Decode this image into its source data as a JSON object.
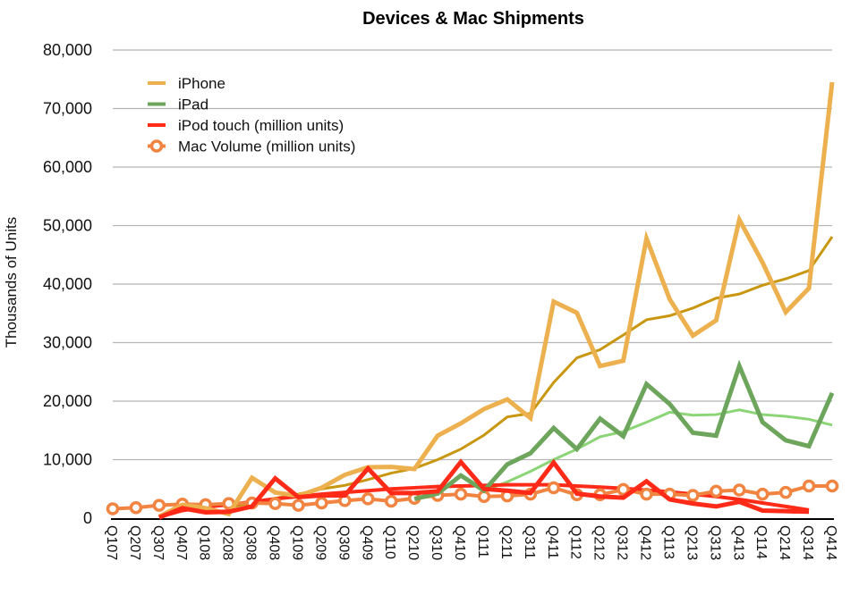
{
  "chart_data": {
    "type": "line",
    "title": "Devices & Mac Shipments",
    "xlabel": "",
    "ylabel": "Thousands of Units",
    "ylim": [
      0,
      80000
    ],
    "yticks": [
      0,
      10000,
      20000,
      30000,
      40000,
      50000,
      60000,
      70000,
      80000
    ],
    "ytick_labels": [
      "0",
      "10,000",
      "20,000",
      "30,000",
      "40,000",
      "50,000",
      "60,000",
      "70,000",
      "80,000"
    ],
    "grid": true,
    "legend_position": "top-left",
    "categories": [
      "Q107",
      "Q207",
      "Q307",
      "Q407",
      "Q108",
      "Q208",
      "Q308",
      "Q408",
      "Q109",
      "Q209",
      "Q309",
      "Q409",
      "Q110",
      "Q210",
      "Q310",
      "Q410",
      "Q111",
      "Q211",
      "Q311",
      "Q411",
      "Q112",
      "Q212",
      "Q312",
      "Q412",
      "Q113",
      "Q213",
      "Q313",
      "Q413",
      "Q114",
      "Q214",
      "Q314",
      "Q414"
    ],
    "series": [
      {
        "name": "iPhone",
        "color": "#EDB04E",
        "style": "thick-line",
        "in_legend": true,
        "values": [
          null,
          null,
          270,
          2300,
          1700,
          720,
          6900,
          4400,
          3800,
          5200,
          7400,
          8700,
          8750,
          8400,
          14100,
          16200,
          18650,
          20300,
          17100,
          37000,
          35100,
          26000,
          26900,
          47800,
          37400,
          31200,
          33800,
          51000,
          43700,
          35200,
          39300,
          74500
        ]
      },
      {
        "name": "iPhone trend",
        "color": "#C8960F",
        "style": "thin-line",
        "in_legend": false,
        "values": [
          null,
          null,
          null,
          null,
          null,
          1800,
          2600,
          3400,
          4100,
          5000,
          5600,
          6600,
          7700,
          8500,
          10000,
          11800,
          14200,
          17300,
          17900,
          23200,
          27400,
          28800,
          31300,
          33900,
          34600,
          35900,
          37600,
          38300,
          39800,
          40900,
          42300,
          48100
        ]
      },
      {
        "name": "iPad",
        "color": "#6CA55B",
        "style": "thick-line",
        "in_legend": true,
        "values": [
          null,
          null,
          null,
          null,
          null,
          null,
          null,
          null,
          null,
          null,
          null,
          null,
          null,
          3300,
          4200,
          7300,
          4700,
          9200,
          11100,
          15400,
          11800,
          17000,
          14000,
          22900,
          19500,
          14600,
          14100,
          26000,
          16400,
          13300,
          12300,
          21400
        ]
      },
      {
        "name": "iPad trend",
        "color": "#8BD577",
        "style": "thin-line",
        "in_legend": false,
        "values": [
          null,
          null,
          null,
          null,
          null,
          null,
          null,
          null,
          null,
          null,
          null,
          null,
          null,
          null,
          null,
          null,
          4700,
          6200,
          8000,
          10000,
          11800,
          13900,
          14800,
          16400,
          18100,
          17600,
          17700,
          18500,
          17700,
          17400,
          16900,
          15900
        ]
      },
      {
        "name": "iPod touch (million units)",
        "color": "#FF2A17",
        "style": "thick-line",
        "in_legend": true,
        "values": [
          null,
          null,
          100,
          1700,
          1000,
          1100,
          2000,
          6800,
          3600,
          3900,
          3900,
          8500,
          4300,
          4300,
          4600,
          9600,
          5000,
          4700,
          4300,
          9500,
          4200,
          3700,
          3500,
          6300,
          3200,
          2500,
          2000,
          2800,
          1300,
          1200,
          1100,
          null
        ]
      },
      {
        "name": "iPod touch trend",
        "color": "#FF2A17",
        "style": "medium-line",
        "in_legend": false,
        "values": [
          null,
          null,
          200,
          1300,
          1900,
          2300,
          2800,
          3300,
          3700,
          4100,
          4400,
          4700,
          5000,
          5200,
          5400,
          5500,
          5600,
          5700,
          5700,
          5700,
          5500,
          5300,
          5100,
          4800,
          4500,
          4100,
          3700,
          3200,
          2600,
          2000,
          1400,
          null
        ]
      },
      {
        "name": "Mac Volume (million units)",
        "color": "#F08440",
        "style": "line-with-open-circles",
        "in_legend": true,
        "values": [
          1600,
          1800,
          2200,
          2400,
          2300,
          2500,
          2600,
          2500,
          2200,
          2600,
          3000,
          3300,
          2900,
          3400,
          3900,
          4100,
          3700,
          3800,
          4100,
          5200,
          4000,
          4000,
          4900,
          4100,
          4100,
          3900,
          4600,
          4800,
          4100,
          4400,
          5500,
          5500
        ]
      }
    ]
  }
}
